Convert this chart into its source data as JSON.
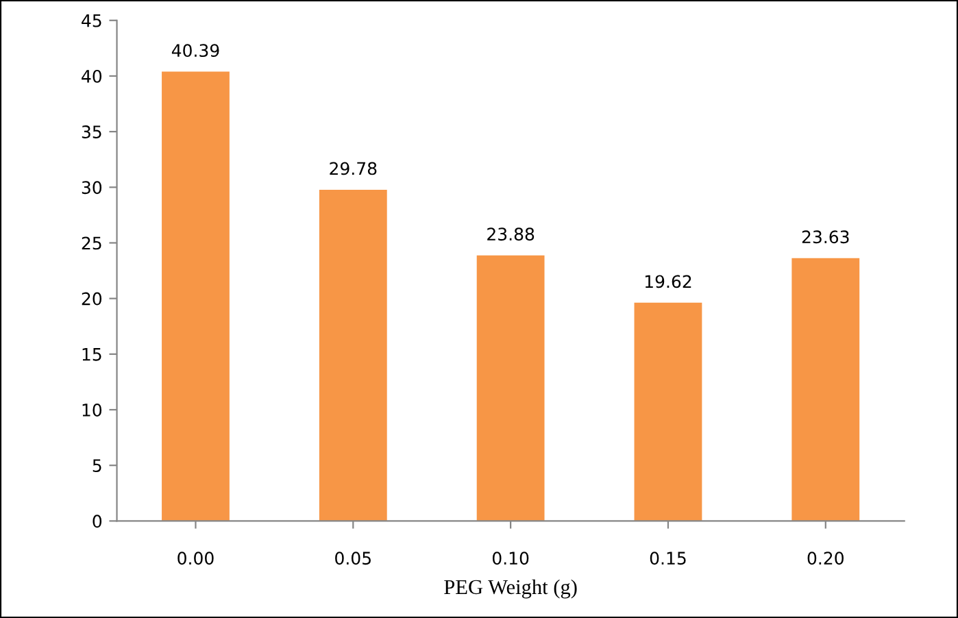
{
  "chart_data": {
    "type": "bar",
    "xlabel": "PEG Weight (g)",
    "categories": [
      "0.00",
      "0.05",
      "0.10",
      "0.15",
      "0.20"
    ],
    "values": [
      40.39,
      29.78,
      23.88,
      19.62,
      23.63
    ],
    "color": "#f79646",
    "ylim": [
      0,
      45
    ],
    "yticks": [
      0,
      5,
      10,
      15,
      20,
      25,
      30,
      35,
      40,
      45
    ],
    "grid": false,
    "data_labels": true
  }
}
